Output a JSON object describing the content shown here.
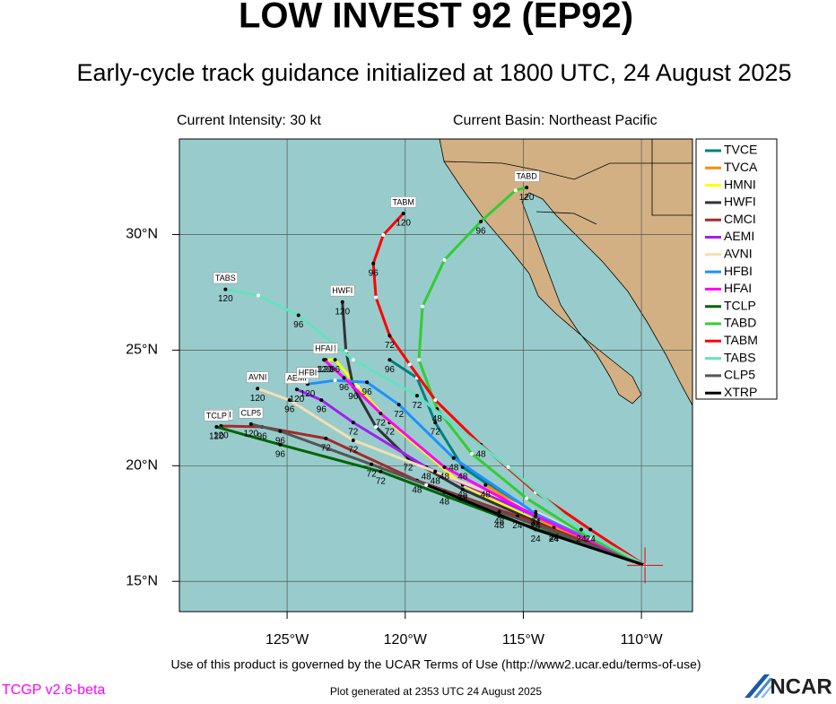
{
  "header": {
    "title": "LOW INVEST 92 (EP92)",
    "subtitle": "Early-cycle track guidance initialized at 1800 UTC, 24 August 2025",
    "intensity": "Current Intensity: 30 kt",
    "basin": "Current Basin: Northeast Pacific"
  },
  "map": {
    "lonlim": [
      -129.56,
      -107.84
    ],
    "latlim": [
      13.69,
      34.13
    ],
    "lonticks": [
      {
        "value": -125,
        "label": "125°W"
      },
      {
        "value": -120,
        "label": "120°W"
      },
      {
        "value": -115,
        "label": "115°W"
      },
      {
        "value": -110,
        "label": "110°W"
      }
    ],
    "latticks": [
      {
        "value": 15,
        "label": "15°N"
      },
      {
        "value": 20,
        "label": "20°N"
      },
      {
        "value": 25,
        "label": "25°N"
      },
      {
        "value": 30,
        "label": "30°N"
      }
    ],
    "grid": true,
    "tracks": [
      {
        "name": "TVCE",
        "color": "#008080",
        "lon": [
          -109.85,
          -113.71,
          -117.57,
          -118.73,
          -119.5,
          -120.66
        ],
        "lat": [
          15.69,
          17.24,
          19.94,
          21.87,
          23.8,
          24.58
        ],
        "hours": [
          null,
          24,
          48,
          72,
          null,
          96
        ]
      },
      {
        "name": "TVCA",
        "color": "#ff8c00",
        "lon": [
          -109.85,
          -113.71,
          -116.6
        ],
        "lat": [
          15.69,
          17.32,
          19.17
        ],
        "hours": [
          null,
          24,
          48
        ]
      },
      {
        "name": "HMNI",
        "color": "#ffff00",
        "lon": [
          -109.85,
          -113.71,
          -117.57,
          -120.66,
          -122.0,
          -122.97,
          -123.36
        ],
        "lat": [
          15.69,
          17.24,
          19.17,
          21.87,
          23.42,
          24.58,
          24.58
        ],
        "hours": [
          null,
          24,
          48,
          72,
          null,
          96,
          120
        ]
      },
      {
        "name": "HWFI",
        "color": "#333333",
        "lon": [
          -109.85,
          -113.71,
          -117.57,
          -119.88,
          -121.24,
          -122.2,
          -122.51,
          -122.66
        ],
        "lat": [
          15.69,
          17.24,
          18.98,
          20.33,
          21.68,
          23.42,
          24.96,
          27.08
        ],
        "hours": [
          null,
          24,
          48,
          72,
          null,
          96,
          null,
          120
        ]
      },
      {
        "name": "CMCI",
        "color": "#a52a2a",
        "lon": [
          -109.85,
          -115.25,
          -119.5,
          -123.36,
          -126.06,
          -127.8
        ],
        "lat": [
          15.69,
          17.82,
          19.36,
          21.18,
          21.68,
          21.72
        ],
        "hours": [
          null,
          24,
          48,
          72,
          96,
          120
        ]
      },
      {
        "name": "AEMI",
        "color": "#a020f0",
        "lon": [
          -109.85,
          -114.48,
          -119.11,
          -122.2,
          -123.55,
          -124.59
        ],
        "lat": [
          15.69,
          17.82,
          19.94,
          21.87,
          22.84,
          23.3
        ],
        "hours": [
          null,
          24,
          48,
          72,
          96,
          120
        ]
      },
      {
        "name": "AVNI",
        "color": "#f5deb3",
        "lon": [
          -109.85,
          -114.48,
          -118.73,
          -122.2,
          -124.9,
          -126.25
        ],
        "lat": [
          15.69,
          18.01,
          19.75,
          21.1,
          22.84,
          23.34
        ],
        "hours": [
          null,
          24,
          48,
          72,
          96,
          120
        ]
      },
      {
        "name": "HFBI",
        "color": "#1e90ff",
        "lon": [
          -109.85,
          -114.48,
          -117.95,
          -120.27,
          -121.62,
          -122.97,
          -124.13
        ],
        "lat": [
          15.69,
          17.93,
          20.33,
          22.64,
          23.61,
          23.69,
          23.53
        ],
        "hours": [
          null,
          24,
          48,
          72,
          96,
          null,
          120
        ]
      },
      {
        "name": "HFAI",
        "color": "#ff00ff",
        "lon": [
          -109.85,
          -114.48,
          -118.34,
          -121.04,
          -122.59,
          -123.44
        ],
        "lat": [
          15.69,
          17.82,
          19.94,
          22.26,
          23.8,
          24.58
        ],
        "hours": [
          null,
          24,
          48,
          72,
          96,
          120
        ]
      },
      {
        "name": "TCLP",
        "color": "#006400",
        "lon": [
          -109.85,
          -116.02,
          -121.04,
          -125.29,
          -127.99
        ],
        "lat": [
          15.69,
          17.82,
          19.75,
          20.91,
          21.68
        ],
        "hours": [
          null,
          48,
          72,
          96,
          120
        ]
      },
      {
        "name": "TABD",
        "color": "#32cd32",
        "lon": [
          -109.85,
          -112.16,
          -114.86,
          -117.18,
          -118.65,
          -119.42,
          -119.27,
          -118.34,
          -116.8,
          -115.33,
          -114.86
        ],
        "lat": [
          15.69,
          16.85,
          18.59,
          20.52,
          22.45,
          24.58,
          26.89,
          28.9,
          30.56,
          31.91,
          32.03
        ],
        "hours": [
          null,
          null,
          null,
          null,
          48,
          null,
          null,
          null,
          96,
          null,
          120
        ]
      },
      {
        "name": "TABM",
        "color": "#ff0000",
        "lon": [
          -109.85,
          -112.16,
          -114.48,
          -116.8,
          -118.73,
          -119.81,
          -120.66,
          -121.24,
          -121.35,
          -120.93,
          -120.08
        ],
        "lat": [
          15.69,
          17.24,
          18.86,
          20.91,
          22.84,
          24.38,
          25.62,
          27.28,
          28.75,
          29.98,
          30.91
        ],
        "hours": [
          null,
          24,
          null,
          48,
          null,
          null,
          72,
          null,
          96,
          null,
          120
        ]
      },
      {
        "name": "TABS",
        "color": "#66e0c0",
        "lon": [
          -109.85,
          -112.55,
          -115.64,
          -119.5,
          -122.2,
          -124.52,
          -126.22,
          -127.61
        ],
        "lat": [
          15.69,
          17.24,
          19.94,
          23.03,
          24.58,
          26.51,
          27.36,
          27.63
        ],
        "hours": [
          null,
          24,
          null,
          72,
          null,
          96,
          null,
          120
        ]
      },
      {
        "name": "CLP5",
        "color": "#555555",
        "lon": [
          -109.85,
          -116.02,
          -121.43,
          -125.29,
          -126.53
        ],
        "lat": [
          15.69,
          18.01,
          20.06,
          21.49,
          21.8
        ],
        "hours": [
          null,
          48,
          72,
          96,
          120
        ]
      },
      {
        "name": "XTRP",
        "color": "#000000",
        "lon": [
          -109.85,
          -114.48,
          -118.34,
          -119.11
        ],
        "lat": [
          15.69,
          17.24,
          18.86,
          19.17
        ],
        "hours": [
          null,
          24,
          48,
          null
        ]
      }
    ]
  },
  "footer": {
    "terms": "Use of this product is governed by the UCAR Terms of Use (http://www2.ucar.edu/terms-of-use)",
    "version": "TCGP v2.6-beta",
    "generated": "Plot generated at 2353 UTC  24 August 2025",
    "logo": "NCAR"
  }
}
